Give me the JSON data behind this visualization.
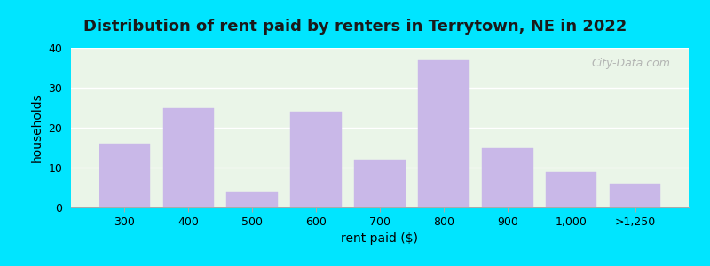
{
  "categories": [
    "300",
    "400",
    "500",
    "600",
    "700",
    "800",
    "900",
    "1,000",
    ">1,250"
  ],
  "values": [
    16,
    25,
    4,
    24,
    12,
    37,
    15,
    9,
    6
  ],
  "bar_color": "#c9b8e8",
  "bar_edgecolor": "#c9b8e8",
  "title": "Distribution of rent paid by renters in Terrytown, NE in 2022",
  "xlabel": "rent paid ($)",
  "ylabel": "households",
  "ylim": [
    0,
    40
  ],
  "yticks": [
    0,
    10,
    20,
    30,
    40
  ],
  "background_color": "#eaf5e8",
  "outer_background": "#00e5ff",
  "title_fontsize": 13,
  "axis_label_fontsize": 10,
  "tick_fontsize": 9,
  "watermark": "City-Data.com"
}
